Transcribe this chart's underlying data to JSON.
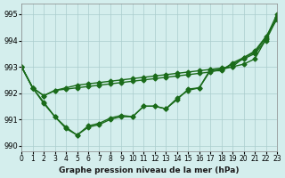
{
  "title": "Graphe pression niveau de la mer (hPa)",
  "background_color": "#d4eeed",
  "grid_color": "#aacccc",
  "line_color": "#1a6b1a",
  "xlim": [
    0,
    23
  ],
  "ylim": [
    989.8,
    995.4
  ],
  "yticks": [
    990,
    991,
    992,
    993,
    994,
    995
  ],
  "xtick_labels": [
    "0",
    "1",
    "2",
    "3",
    "4",
    "5",
    "6",
    "7",
    "8",
    "9",
    "10",
    "11",
    "12",
    "13",
    "14",
    "15",
    "16",
    "17",
    "18",
    "19",
    "20",
    "21",
    "22",
    "23"
  ],
  "line1": [
    993.0,
    992.2,
    991.6,
    991.1,
    990.7,
    990.4,
    990.7,
    990.8,
    991.0,
    991.1,
    991.1,
    991.5,
    991.5,
    991.4,
    991.8,
    992.1,
    992.2,
    992.9,
    992.9,
    993.0,
    993.35,
    993.55,
    994.1,
    995.0
  ],
  "line2": [
    993.0,
    992.2,
    991.9,
    992.1,
    992.2,
    992.3,
    992.35,
    992.4,
    992.45,
    992.5,
    992.55,
    992.6,
    992.65,
    992.7,
    992.75,
    992.8,
    992.85,
    992.9,
    992.95,
    993.0,
    993.1,
    993.3,
    994.05,
    994.9
  ],
  "line3": [
    993.0,
    992.2,
    991.9,
    992.1,
    992.15,
    992.2,
    992.25,
    992.3,
    992.35,
    992.4,
    992.45,
    992.5,
    992.55,
    992.6,
    992.65,
    992.7,
    992.75,
    992.8,
    992.9,
    993.1,
    993.3,
    993.5,
    994.0,
    994.85
  ],
  "line4": [
    993.0,
    992.2,
    991.65,
    991.1,
    990.65,
    990.4,
    990.75,
    990.85,
    991.05,
    991.15,
    991.1,
    991.5,
    991.5,
    991.4,
    991.75,
    992.15,
    992.2,
    992.85,
    992.85,
    993.15,
    993.35,
    993.6,
    994.15,
    994.8
  ]
}
